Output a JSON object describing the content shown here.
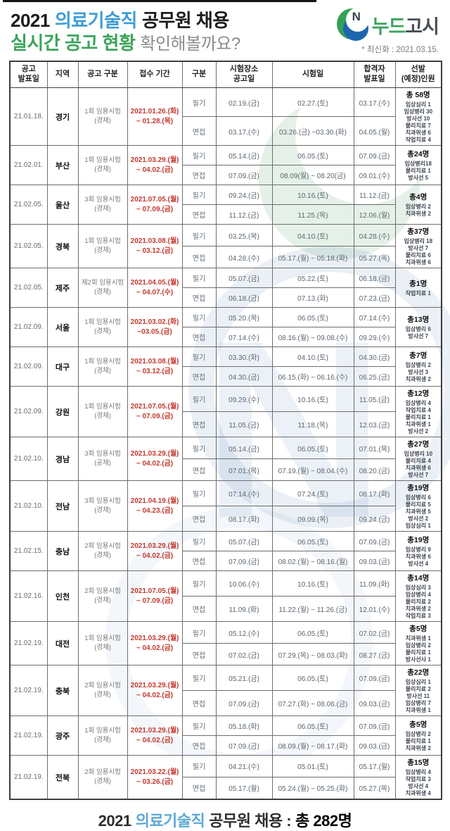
{
  "header": {
    "title_line1": {
      "prefix": "2021",
      "highlight": "의료기술직",
      "suffix": "공무원 채용"
    },
    "title_line2": {
      "highlight": "실시간 공고 현황",
      "suffix": "확인해볼까요?"
    },
    "logo": {
      "icon_letter": "N",
      "name_green": "누드",
      "name_dark": "고시"
    },
    "updated": "* 최신화 : 2021.03.15."
  },
  "table": {
    "headers": [
      "공고\n발표일",
      "지역",
      "공고 구분",
      "접수 기간",
      "구분",
      "시험장소\n공고일",
      "시험일",
      "합격자\n발표일",
      "선발\n(예정)인원"
    ],
    "rows": [
      {
        "date": "21.01.18.",
        "region": "경기",
        "round1": "1회 임용시험",
        "round2": "(경채)",
        "period1": "2021.01.26.(화)",
        "period2": "~ 01.28.(목)",
        "written": {
          "label": "필기",
          "loc": "02.19.(금)",
          "exam": "02.27.(토)",
          "result": "03.17.(수)"
        },
        "interview": {
          "label": "면접",
          "loc": "03.17.(수)",
          "exam": "03.26.(금) ~03.30.(화)",
          "result": "04.05.(월)"
        },
        "selection": {
          "total": "총 58명",
          "jobs": [
            "임상심리 1",
            "임상병리 30",
            "방사선 10",
            "물리치료 7",
            "치과위생 6",
            "작업치료 4"
          ]
        }
      },
      {
        "date": "21.02.01.",
        "region": "부산",
        "round1": "1회 임용시험",
        "round2": "(경채)",
        "period1": "2021.03.29.(월)",
        "period2": "~ 04.02.(금)",
        "written": {
          "label": "필기",
          "loc": "05.14.(금)",
          "exam": "06.05.(토)",
          "result": "07.09.(금)"
        },
        "interview": {
          "label": "면접",
          "loc": "07.09.(금)",
          "exam": "08.09(월) ~ 08.20(금)",
          "result": "09.01.(수)"
        },
        "selection": {
          "total": "총24명",
          "jobs": [
            "임상병리18",
            "물리치료 1",
            "방사선 5"
          ]
        }
      },
      {
        "date": "21.02.05.",
        "region": "울산",
        "round1": "3회 임용시험",
        "round2": "(경채)",
        "period1": "2021.07.05.(월)",
        "period2": "~ 07.09.(금)",
        "written": {
          "label": "필기",
          "loc": "09.24.(금)",
          "exam": "10.16.(토)",
          "result": "11.12.(금)"
        },
        "interview": {
          "label": "면접",
          "loc": "11.12.(금)",
          "exam": "11.25.(목)",
          "result": "12.06.(월)"
        },
        "selection": {
          "total": "총4명",
          "jobs": [
            "임상병리 2",
            "치과위생 2"
          ]
        }
      },
      {
        "date": "21.02.05.",
        "region": "경북",
        "round1": "1회 임용시험",
        "round2": "(경채)",
        "period1": "2021.03.08.(월)",
        "period2": "~ 03.12.(금)",
        "written": {
          "label": "필기",
          "loc": "03.25.(목)",
          "exam": "04.10.(토)",
          "result": "04.28.(수)"
        },
        "interview": {
          "label": "면접",
          "loc": "04.28.(수)",
          "exam": "05.17.(월) ~ 05.18.(화)",
          "result": "05.27.(목)"
        },
        "selection": {
          "total": "총37명",
          "jobs": [
            "임상병리 18",
            "방사선 7",
            "물리치료 6",
            "치과위생 6"
          ]
        }
      },
      {
        "date": "21.02.05.",
        "region": "제주",
        "round1": "제2회 임용시험",
        "round2": "(경채)",
        "period1": "2021.04.05.(월)",
        "period2": "~ 04.07.(수)",
        "written": {
          "label": "필기",
          "loc": "05.07.(금)",
          "exam": "05.22.(토)",
          "result": "06.18.(금)"
        },
        "interview": {
          "label": "면접",
          "loc": "06.18.(금)",
          "exam": "07.13.(화)",
          "result": "07.23.(금)"
        },
        "selection": {
          "total": "총1명",
          "jobs": [
            "작업치료 1"
          ]
        }
      },
      {
        "date": "21.02.09.",
        "region": "서울",
        "round1": "1회 임용시험",
        "round2": "(경채)",
        "period1": "2021.03.02.(화)",
        "period2": "~03.05.(금)",
        "written": {
          "label": "필기",
          "loc": "05.20.(목)",
          "exam": "06.05.(토)",
          "result": "07.14.(수)"
        },
        "interview": {
          "label": "면접",
          "loc": "07.14.(수)",
          "exam": "08.16.(월) ~ 09.08.(수)",
          "result": "09.29.(수)"
        },
        "selection": {
          "total": "총13명",
          "jobs": [
            "임상병리 6",
            "방사선 7"
          ]
        }
      },
      {
        "date": "21.02.09.",
        "region": "대구",
        "round1": "1회 임용시험",
        "round2": "(경채)",
        "period1": "2021.03.08.(월)",
        "period2": "~ 03.12.(금)",
        "written": {
          "label": "필기",
          "loc": "03.30.(화)",
          "exam": "04.10.(토)",
          "result": "04.30.(금)"
        },
        "interview": {
          "label": "면접",
          "loc": "04.30.(금)",
          "exam": "06.15.(화) ~ 06.16.(수)",
          "result": "06.25.(금)"
        },
        "selection": {
          "total": "총7명",
          "jobs": [
            "임상병리 2",
            "방사선 3",
            "치과위생 2"
          ]
        }
      },
      {
        "date": "21.02.09.",
        "region": "강원",
        "round1": "1회 임용시험",
        "round2": "(경채)",
        "period1": "2021.07.05.(월)",
        "period2": "~ 07.09.(금)",
        "written": {
          "label": "필기",
          "loc": "09.29.(수)",
          "exam": "10.16.(토)",
          "result": "11.05.(금)"
        },
        "interview": {
          "label": "면접",
          "loc": "11.05.(금)",
          "exam": "11.18.(목)",
          "result": "12.03.(금)"
        },
        "selection": {
          "total": "총12명",
          "jobs": [
            "임상병리 4",
            "작업치료 4",
            "물리치료 1",
            "치과위생 1",
            "방사선 2"
          ]
        }
      },
      {
        "date": "21.02.10.",
        "region": "경남",
        "round1": "3회 임용시험",
        "round2": "(공채)",
        "period1": "2021.03.29.(월)",
        "period2": "~ 04.02.(금)",
        "written": {
          "label": "필기",
          "loc": "05.14.(금)",
          "exam": "06.05.(토)",
          "result": "07.01.(목)"
        },
        "interview": {
          "label": "면접",
          "loc": "07.01.(목)",
          "exam": "07.19.(월) ~ 08.04.(수)",
          "result": "08.20.(금)"
        },
        "selection": {
          "total": "총27명",
          "jobs": [
            "임상병리 10",
            "물리치료 4",
            "치과위생 6",
            "방사선 7"
          ]
        }
      },
      {
        "date": "21.02.10.",
        "region": "전남",
        "round1": "3회 임용시험",
        "round2": "(경채)",
        "period1": "2021.04.19.(월)",
        "period2": "~ 04.23.(금)",
        "written": {
          "label": "필기",
          "loc": "07.14.(수)",
          "exam": "07.24.(토)",
          "result": "08.17.(화)"
        },
        "interview": {
          "label": "면접",
          "loc": "08.17.(화)",
          "exam": "09.09.(목)",
          "result": "09.24.(금)"
        },
        "selection": {
          "total": "총19명",
          "jobs": [
            "임상병리 6",
            "물리치료 5",
            "치과위생 5",
            "방사선 2",
            "임상심리 1"
          ]
        }
      },
      {
        "date": "21.02.15.",
        "region": "충남",
        "round1": "2회 임용시험",
        "round2": "(경채)",
        "period1": "2021.03.29.(월)",
        "period2": "~ 04.02.(금)",
        "written": {
          "label": "필기",
          "loc": "05.07.(금)",
          "exam": "06.05.(토)",
          "result": "07.09.(금)"
        },
        "interview": {
          "label": "면접",
          "loc": "07.09.(금)",
          "exam": "08.02.(월) ~ 08.16.(월)",
          "result": "09.03.(금)"
        },
        "selection": {
          "total": "총19명",
          "jobs": [
            "임상병리 9",
            "치과위생 6",
            "방사선 4"
          ]
        }
      },
      {
        "date": "21.02.16.",
        "region": "인천",
        "round1": "2회 임용시험",
        "round2": "(경채)",
        "period1": "2021.07.05.(월)",
        "period2": "~ 07.09.(금)",
        "written": {
          "label": "필기",
          "loc": "10.06.(수)",
          "exam": "10.16.(토)",
          "result": "11.09.(화)"
        },
        "interview": {
          "label": "면접",
          "loc": "11.09.(화)",
          "exam": "11.22.(월) ~ 11.26.(금)",
          "result": "12.01.(수)"
        },
        "selection": {
          "total": "총14명",
          "jobs": [
            "임상심리 3",
            "임상병리 4",
            "물리치료 2",
            "치과위생 2",
            "작업치료 3"
          ]
        }
      },
      {
        "date": "21.02.19.",
        "region": "대전",
        "round1": "1회 임용시험",
        "round2": "(경채)",
        "period1": "2021.03.29.(월)",
        "period2": "~ 04.02.(금)",
        "written": {
          "label": "필기",
          "loc": "05.12.(수)",
          "exam": "06.05.(토)",
          "result": "07.02.(금)"
        },
        "interview": {
          "label": "면접",
          "loc": "07.02.(금)",
          "exam": "07.29.(목) ~ 08.03.(화)",
          "result": "08.27.(금)"
        },
        "selection": {
          "total": "총5명",
          "jobs": [
            "치과위생 1",
            "임상병리 2",
            "물리치료 1",
            "방사선사 1"
          ]
        }
      },
      {
        "date": "21.02.19.",
        "region": "충북",
        "round1": "2회 임용시험",
        "round2": "(경채)",
        "period1": "2021.03.29.(월)",
        "period2": "~ 04.02.(금)",
        "written": {
          "label": "필기",
          "loc": "05.21.(금)",
          "exam": "06.05.(토)",
          "result": "07.09.(금)"
        },
        "interview": {
          "label": "면접",
          "loc": "07.09.(금)",
          "exam": "07.27.(화) ~ 08.06.(금)",
          "result": "09.03.(금)"
        },
        "selection": {
          "total": "총22명",
          "jobs": [
            "임상심리 1",
            "물리치료 2",
            "방사선 11",
            "임상병리 7",
            "치과위생 1"
          ]
        }
      },
      {
        "date": "21.02.19.",
        "region": "광주",
        "round1": "1회 임용시험",
        "round2": "(경채)",
        "period1": "2021.03.29.(월)",
        "period2": "~ 04.02.(금)",
        "written": {
          "label": "필기",
          "loc": "05.18.(화)",
          "exam": "06.05.(토)",
          "result": "07.09.(금)"
        },
        "interview": {
          "label": "면접",
          "loc": "07.09.(금)",
          "exam": "08.09.(월) ~ 08.17.(화)",
          "result": "09.03.(금)"
        },
        "selection": {
          "total": "총5명",
          "jobs": [
            "임상병리 2",
            "물리치료 1",
            "치과위생 2"
          ]
        }
      },
      {
        "date": "21.02.19.",
        "region": "전북",
        "round1": "2회 임용시험",
        "round2": "(경채)",
        "period1": "2021.03.22.(월)",
        "period2": "~ 03.26.(금)",
        "written": {
          "label": "필기",
          "loc": "04.21.(수)",
          "exam": "05.01.(토)",
          "result": "05.17.(월)"
        },
        "interview": {
          "label": "면접",
          "loc": "05.17.(월)",
          "exam": "05.24.(월) ~ 05.25.(화)",
          "result": "05.27.(목)"
        },
        "selection": {
          "total": "총15명",
          "jobs": [
            "임상병리 4",
            "작업치료 3",
            "방사선 4",
            "치과위생 4"
          ]
        }
      }
    ]
  },
  "footer": {
    "prefix": "2021",
    "highlight": "의료기술직",
    "middle": "공무원 채용 :",
    "total": "총 282명"
  }
}
